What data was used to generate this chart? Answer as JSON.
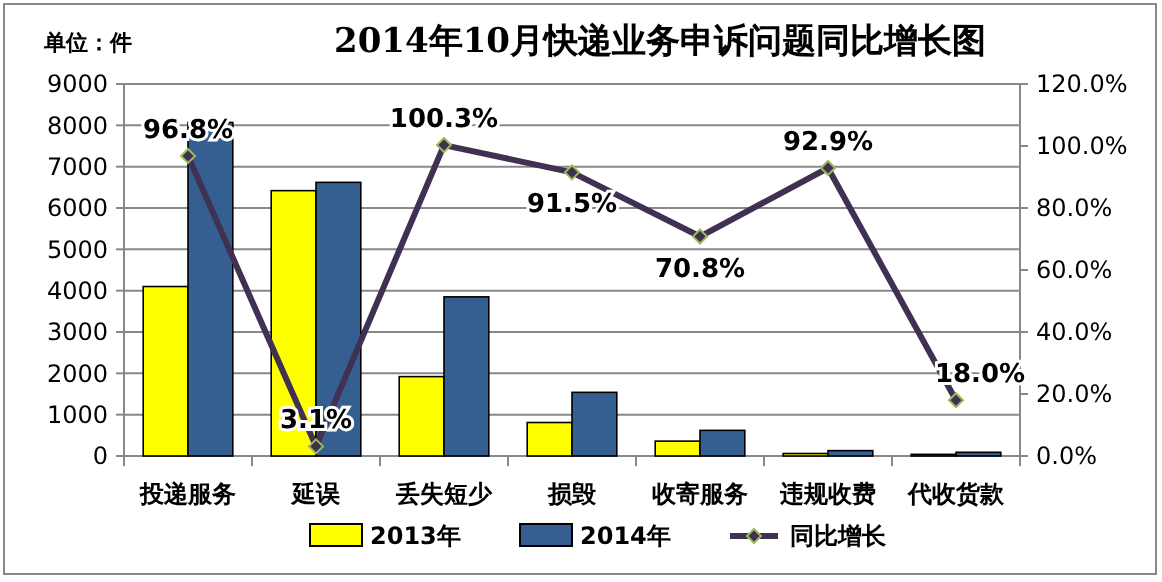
{
  "chart_data": {
    "type": "bar",
    "title": "2014年10月快递业务申诉问题同比增长图",
    "annotations": [
      "单位：件"
    ],
    "categories": [
      "投递服务",
      "延误",
      "丢失短少",
      "损毁",
      "收寄服务",
      "违规收费",
      "代收货款"
    ],
    "series": [
      {
        "name": "2013年",
        "color": "#ffff00",
        "values": [
          4100,
          6420,
          1920,
          810,
          360,
          60,
          40
        ]
      },
      {
        "name": "2014年",
        "color": "#365f91",
        "values": [
          8070,
          6620,
          3850,
          1540,
          620,
          130,
          90
        ]
      },
      {
        "name": "同比增长",
        "type": "line",
        "axis": "y2",
        "color": "#403152",
        "marker": "diamond",
        "values": [
          96.8,
          3.1,
          100.3,
          91.5,
          70.8,
          92.9,
          18.0
        ],
        "value_labels": [
          "96.8%",
          "3.1%",
          "100.3%",
          "91.5%",
          "70.8%",
          "92.9%",
          "18.0%"
        ]
      }
    ],
    "ylim": [
      0,
      9000
    ],
    "yticks": [
      0,
      1000,
      2000,
      3000,
      4000,
      5000,
      6000,
      7000,
      8000,
      9000
    ],
    "y2lim": [
      0,
      120
    ],
    "y2ticks": [
      {
        "value": 0,
        "label": "0.0%"
      },
      {
        "value": 20,
        "label": "20.0%"
      },
      {
        "value": 40,
        "label": "40.0%"
      },
      {
        "value": 60,
        "label": "60.0%"
      },
      {
        "value": 80,
        "label": "80.0%"
      },
      {
        "value": 100,
        "label": "100.0%"
      },
      {
        "value": 120,
        "label": "120.0%"
      }
    ],
    "grid": "y",
    "legend": "bottom"
  }
}
